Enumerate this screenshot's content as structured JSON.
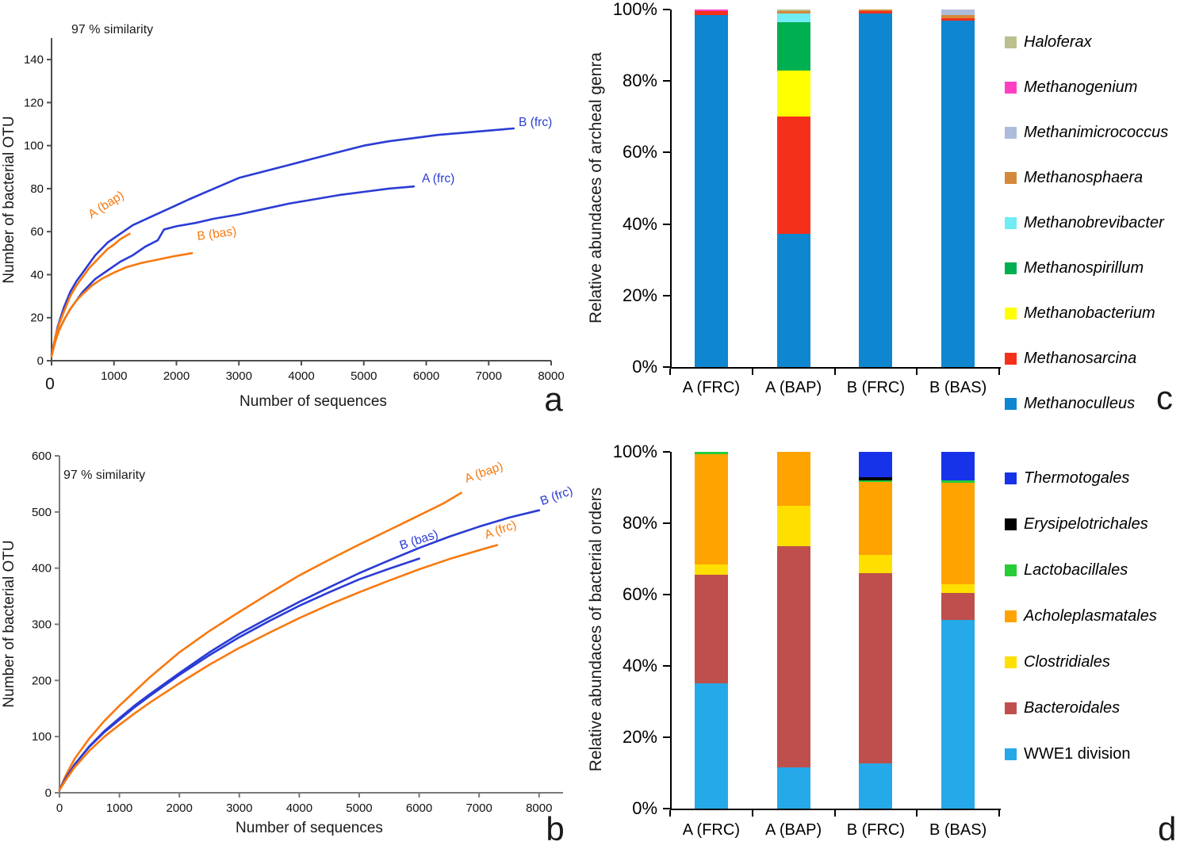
{
  "chart_data": [
    {
      "id": "a",
      "type": "line",
      "panel_letter": "a",
      "annotation": "97 % similarity",
      "xlabel": "Number of sequences",
      "ylabel": "Number of bacterial OTU",
      "xlim": [
        0,
        8000
      ],
      "ylim": [
        0,
        150
      ],
      "xticks": [
        0,
        1000,
        2000,
        3000,
        4000,
        5000,
        6000,
        7000,
        8000
      ],
      "yticks": [
        0,
        20,
        40,
        60,
        80,
        100,
        120,
        140
      ],
      "grid": false,
      "legend_position": "none",
      "series": [
        {
          "name": "B (frc)",
          "color": "#2a3cd4",
          "points": [
            [
              0,
              3
            ],
            [
              100,
              16
            ],
            [
              200,
              25
            ],
            [
              300,
              32
            ],
            [
              400,
              37
            ],
            [
              500,
              41
            ],
            [
              700,
              49
            ],
            [
              900,
              55
            ],
            [
              1100,
              59
            ],
            [
              1300,
              63
            ],
            [
              1600,
              67
            ],
            [
              1900,
              71
            ],
            [
              2200,
              75
            ],
            [
              2600,
              80
            ],
            [
              3000,
              85
            ],
            [
              3400,
              88
            ],
            [
              3800,
              91
            ],
            [
              4200,
              94
            ],
            [
              4600,
              97
            ],
            [
              5000,
              100
            ],
            [
              5400,
              102
            ],
            [
              5800,
              103.5
            ],
            [
              6200,
              105
            ],
            [
              6600,
              106
            ],
            [
              7000,
              107
            ],
            [
              7400,
              108
            ]
          ],
          "label": {
            "x": 7480,
            "y": 109,
            "rotation": 0
          }
        },
        {
          "name": "A (frc)",
          "color": "#2a3cd4",
          "points": [
            [
              0,
              3
            ],
            [
              100,
              13
            ],
            [
              200,
              19
            ],
            [
              300,
              24
            ],
            [
              400,
              28
            ],
            [
              500,
              32
            ],
            [
              700,
              38
            ],
            [
              900,
              42
            ],
            [
              1100,
              46
            ],
            [
              1300,
              49
            ],
            [
              1500,
              53
            ],
            [
              1700,
              56
            ],
            [
              1800,
              61
            ],
            [
              2000,
              62.5
            ],
            [
              2300,
              64
            ],
            [
              2600,
              66
            ],
            [
              3000,
              68
            ],
            [
              3400,
              70.5
            ],
            [
              3800,
              73
            ],
            [
              4200,
              75
            ],
            [
              4600,
              77
            ],
            [
              5000,
              78.5
            ],
            [
              5400,
              80
            ],
            [
              5800,
              81
            ]
          ],
          "label": {
            "x": 5930,
            "y": 83,
            "rotation": 0
          }
        },
        {
          "name": "A (bap)",
          "color": "#f8790f",
          "points": [
            [
              0,
              2
            ],
            [
              60,
              11
            ],
            [
              120,
              17
            ],
            [
              200,
              23
            ],
            [
              300,
              30
            ],
            [
              400,
              35
            ],
            [
              500,
              39
            ],
            [
              600,
              43
            ],
            [
              700,
              46
            ],
            [
              800,
              49
            ],
            [
              900,
              52
            ],
            [
              1000,
              54
            ],
            [
              1100,
              56.5
            ],
            [
              1250,
              59
            ]
          ],
          "label": {
            "x": 640,
            "y": 66,
            "rotation": -33
          }
        },
        {
          "name": "B (bas)",
          "color": "#f8790f",
          "points": [
            [
              0,
              2
            ],
            [
              60,
              9
            ],
            [
              120,
              14
            ],
            [
              200,
              19
            ],
            [
              300,
              24
            ],
            [
              400,
              28
            ],
            [
              500,
              31
            ],
            [
              650,
              35
            ],
            [
              800,
              38
            ],
            [
              1000,
              41
            ],
            [
              1200,
              43.5
            ],
            [
              1450,
              45.5
            ],
            [
              1700,
              47
            ],
            [
              1950,
              48.5
            ],
            [
              2250,
              50
            ]
          ],
          "label": {
            "x": 2340,
            "y": 56,
            "rotation": -8
          }
        }
      ]
    },
    {
      "id": "b",
      "type": "line",
      "panel_letter": "b",
      "annotation": "97 % similarity",
      "xlabel": "Number of sequences",
      "ylabel": "Number of bacterial OTU",
      "xlim": [
        0,
        8400
      ],
      "ylim": [
        0,
        600
      ],
      "xticks": [
        0,
        1000,
        2000,
        3000,
        4000,
        5000,
        6000,
        7000,
        8000
      ],
      "yticks": [
        0,
        100,
        200,
        300,
        400,
        500,
        600
      ],
      "grid": false,
      "legend_position": "none",
      "series": [
        {
          "name": "A (bap)",
          "color": "#f8790f",
          "points": [
            [
              0,
              5
            ],
            [
              100,
              30
            ],
            [
              250,
              60
            ],
            [
              500,
              97
            ],
            [
              750,
              128
            ],
            [
              1000,
              155
            ],
            [
              1250,
              180
            ],
            [
              1500,
              205
            ],
            [
              2000,
              250
            ],
            [
              2500,
              288
            ],
            [
              3000,
              322
            ],
            [
              3500,
              355
            ],
            [
              4000,
              387
            ],
            [
              4500,
              415
            ],
            [
              5000,
              442
            ],
            [
              5500,
              468
            ],
            [
              6000,
              494
            ],
            [
              6400,
              515
            ],
            [
              6700,
              534
            ]
          ],
          "label": {
            "x": 6790,
            "y": 552,
            "rotation": -20
          }
        },
        {
          "name": "B (frc)",
          "color": "#2a3cd4",
          "points": [
            [
              0,
              5
            ],
            [
              100,
              25
            ],
            [
              250,
              50
            ],
            [
              500,
              83
            ],
            [
              750,
              110
            ],
            [
              1000,
              133
            ],
            [
              1250,
              155
            ],
            [
              1500,
              175
            ],
            [
              2000,
              213
            ],
            [
              2500,
              250
            ],
            [
              3000,
              283
            ],
            [
              3500,
              312
            ],
            [
              4000,
              340
            ],
            [
              4500,
              366
            ],
            [
              5000,
              391
            ],
            [
              5500,
              414
            ],
            [
              6000,
              436
            ],
            [
              6500,
              456
            ],
            [
              7000,
              474
            ],
            [
              7500,
              490
            ],
            [
              8000,
              503
            ]
          ],
          "label": {
            "x": 8050,
            "y": 512,
            "rotation": -20
          }
        },
        {
          "name": "B (bas)",
          "color": "#2a3cd4",
          "points": [
            [
              0,
              5
            ],
            [
              100,
              25
            ],
            [
              250,
              50
            ],
            [
              500,
              82
            ],
            [
              750,
              108
            ],
            [
              1000,
              130
            ],
            [
              1250,
              152
            ],
            [
              1500,
              172
            ],
            [
              2000,
              210
            ],
            [
              2500,
              245
            ],
            [
              3000,
              277
            ],
            [
              3500,
              306
            ],
            [
              4000,
              333
            ],
            [
              4500,
              357
            ],
            [
              5000,
              380
            ],
            [
              5500,
              399
            ],
            [
              6000,
              417
            ]
          ],
          "label": {
            "x": 5700,
            "y": 433,
            "rotation": -18
          }
        },
        {
          "name": "A (frc)",
          "color": "#f8790f",
          "points": [
            [
              0,
              5
            ],
            [
              100,
              22
            ],
            [
              250,
              45
            ],
            [
              500,
              75
            ],
            [
              750,
              100
            ],
            [
              1000,
              121
            ],
            [
              1250,
              141
            ],
            [
              1500,
              160
            ],
            [
              2000,
              195
            ],
            [
              2500,
              228
            ],
            [
              3000,
              258
            ],
            [
              3500,
              285
            ],
            [
              4000,
              311
            ],
            [
              4500,
              335
            ],
            [
              5000,
              357
            ],
            [
              5500,
              378
            ],
            [
              6000,
              398
            ],
            [
              6500,
              416
            ],
            [
              7000,
              432
            ],
            [
              7300,
              441
            ]
          ],
          "label": {
            "x": 7120,
            "y": 452,
            "rotation": -20
          }
        }
      ]
    },
    {
      "id": "c",
      "type": "stacked-bar",
      "panel_letter": "c",
      "ylabel": "Relative abundaces of archeal genra",
      "categories": [
        "A (FRC)",
        "A (BAP)",
        "B (FRC)",
        "B (BAS)"
      ],
      "ytick_labels": [
        "0%",
        "20%",
        "40%",
        "60%",
        "80%",
        "100%"
      ],
      "ylim": [
        0,
        100
      ],
      "legend_position": "right",
      "series": [
        {
          "name": "Methanoculleus",
          "color": "#0e86d0",
          "values": [
            98.5,
            37.3,
            99.0,
            96.8
          ]
        },
        {
          "name": "Methanosarcina",
          "color": "#f5301a",
          "values": [
            1.0,
            32.7,
            0.6,
            0.8
          ]
        },
        {
          "name": "Methanobacterium",
          "color": "#ffff00",
          "values": [
            0,
            13.0,
            0,
            0
          ]
        },
        {
          "name": "Methanospirillum",
          "color": "#00b050",
          "values": [
            0,
            13.5,
            0,
            0
          ]
        },
        {
          "name": "Methanobrevibacter",
          "color": "#70ecf5",
          "values": [
            0,
            2.5,
            0,
            0
          ]
        },
        {
          "name": "Methanosphaera",
          "color": "#d4893a",
          "values": [
            0,
            0.5,
            0.4,
            0.8
          ]
        },
        {
          "name": "Methanimicrococcus",
          "color": "#aebcdc",
          "values": [
            0,
            0,
            0,
            1.6
          ]
        },
        {
          "name": "Methanogenium",
          "color": "#ff3fc3",
          "values": [
            0.5,
            0,
            0,
            0
          ]
        },
        {
          "name": "Haloferax",
          "color": "#bcbf8e",
          "values": [
            0,
            0.5,
            0,
            0
          ]
        }
      ],
      "legend": [
        {
          "label": "Haloferax",
          "color": "#bcbf8e",
          "italic": true
        },
        {
          "label": "Methanogenium",
          "color": "#ff3fc3",
          "italic": true
        },
        {
          "label": "Methanimicrococcus",
          "color": "#aebcdc",
          "italic": true
        },
        {
          "label": "Methanosphaera",
          "color": "#d4893a",
          "italic": true
        },
        {
          "label": "Methanobrevibacter",
          "color": "#70ecf5",
          "italic": true
        },
        {
          "label": "Methanospirillum",
          "color": "#00b050",
          "italic": true
        },
        {
          "label": "Methanobacterium",
          "color": "#ffff00",
          "italic": true
        },
        {
          "label": "Methanosarcina",
          "color": "#f5301a",
          "italic": true
        },
        {
          "label": "Methanoculleus",
          "color": "#0e86d0",
          "italic": true
        }
      ]
    },
    {
      "id": "d",
      "type": "stacked-bar",
      "panel_letter": "d",
      "ylabel": "Relative abundaces of bacterial orders",
      "categories": [
        "A (FRC)",
        "A (BAP)",
        "B (FRC)",
        "B (BAS)"
      ],
      "ytick_labels": [
        "0%",
        "20%",
        "40%",
        "60%",
        "80%",
        "100%"
      ],
      "ylim": [
        0,
        100
      ],
      "legend_position": "right",
      "series": [
        {
          "name": "WWE1 division",
          "color": "#25a9e8",
          "values": [
            35.2,
            11.5,
            12.6,
            52.9
          ]
        },
        {
          "name": "Bacteroidales",
          "color": "#bf4f4c",
          "values": [
            30.3,
            62.1,
            53.3,
            7.5
          ]
        },
        {
          "name": "Clostridiales",
          "color": "#ffdf00",
          "values": [
            3.0,
            11.4,
            5.1,
            2.5
          ]
        },
        {
          "name": "Acholeplasmatales",
          "color": "#ffa300",
          "values": [
            30.8,
            15.0,
            20.6,
            28.5
          ]
        },
        {
          "name": "Lactobacillales",
          "color": "#26cd38",
          "values": [
            0.7,
            0,
            0.5,
            0.6
          ]
        },
        {
          "name": "Erysipelotrichales",
          "color": "#000000",
          "values": [
            0,
            0,
            0.9,
            0
          ]
        },
        {
          "name": "Thermotogales",
          "color": "#1733ea",
          "values": [
            0,
            0,
            7.0,
            8.0
          ]
        }
      ],
      "legend": [
        {
          "label": "Thermotogales",
          "color": "#1733ea",
          "italic": true
        },
        {
          "label": "Erysipelotrichales",
          "color": "#000000",
          "italic": true
        },
        {
          "label": "Lactobacillales",
          "color": "#26cd38",
          "italic": true
        },
        {
          "label": "Acholeplasmatales",
          "color": "#ffa300",
          "italic": true
        },
        {
          "label": "Clostridiales",
          "color": "#ffdf00",
          "italic": true
        },
        {
          "label": "Bacteroidales",
          "color": "#bf4f4c",
          "italic": true
        },
        {
          "label": "WWE1 division",
          "color": "#25a9e8",
          "italic": false
        }
      ]
    }
  ]
}
